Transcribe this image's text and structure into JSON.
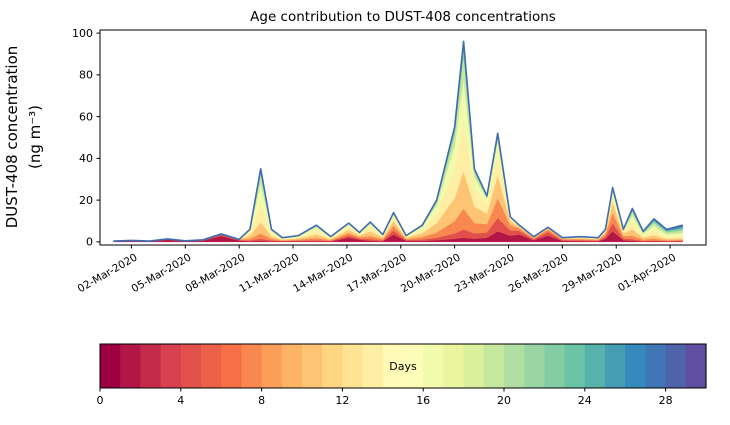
{
  "figure": {
    "title": "Age contribution to DUST-408 concentrations",
    "ylabel_line1": "DUST-408 concentration",
    "ylabel_line2": "(ng m⁻³)",
    "background": "#ffffff",
    "spine_color": "#000000",
    "total_line_color": "#3f6bb0"
  },
  "chart_data": {
    "type": "area",
    "stacked": true,
    "title": "Age contribution to DUST-408 concentrations",
    "ylabel": "DUST-408 concentration (ng m⁻³)",
    "x_unit": "days since 01-Mar-2020",
    "xlim": [
      -0.75,
      33
    ],
    "ylim": [
      -1.5,
      101.5
    ],
    "grid": false,
    "x": [
      0,
      1,
      2,
      3,
      4,
      5,
      6,
      7,
      7.6,
      8.2,
      8.8,
      9.4,
      10.3,
      11.3,
      12.1,
      13.1,
      13.7,
      14.3,
      15,
      15.6,
      16.3,
      17.2,
      18,
      19,
      19.5,
      20.1,
      20.8,
      21.4,
      22.1,
      22.6,
      23.4,
      24.2,
      25,
      26,
      27,
      27.4,
      27.8,
      28.4,
      28.9,
      29.5,
      30.1,
      30.8,
      31.7
    ],
    "series": [
      {
        "name": "age 0-2 days",
        "ages": [
          0,
          2
        ],
        "values": [
          0.2,
          0.4,
          0.2,
          1.0,
          0.3,
          0.6,
          2.8,
          0.6,
          0.3,
          0.5,
          0.3,
          0.2,
          0.3,
          0.3,
          0.2,
          2.0,
          1.0,
          0.5,
          0.3,
          3.5,
          0.5,
          0.5,
          0.8,
          1.5,
          2.0,
          1.5,
          2.0,
          5.0,
          3.0,
          3.5,
          0.8,
          3.0,
          0.5,
          0.4,
          0.3,
          1.5,
          5.0,
          0.8,
          0.5,
          0.2,
          0.3,
          0.2,
          0.2
        ]
      },
      {
        "name": "age 3-5 days",
        "ages": [
          3,
          5
        ],
        "values": [
          0.1,
          0.2,
          0.1,
          0.3,
          0.1,
          0.3,
          0.6,
          0.3,
          0.4,
          1.0,
          0.4,
          0.2,
          0.3,
          0.5,
          0.3,
          1.0,
          0.6,
          0.8,
          0.4,
          2.0,
          0.4,
          0.7,
          1.2,
          2.5,
          4.0,
          2.5,
          2.5,
          6.5,
          2.5,
          1.8,
          0.5,
          1.8,
          0.4,
          0.4,
          0.3,
          1.0,
          4.0,
          0.8,
          0.8,
          0.3,
          0.4,
          0.2,
          0.3
        ]
      },
      {
        "name": "age 6-8 days",
        "ages": [
          6,
          8
        ],
        "values": [
          0.1,
          0.1,
          0.1,
          0.1,
          0.1,
          0.1,
          0.3,
          0.2,
          0.8,
          2.5,
          0.8,
          0.3,
          0.5,
          1.0,
          0.4,
          1.2,
          0.7,
          1.5,
          0.6,
          2.2,
          0.5,
          1.2,
          2.5,
          6.0,
          10,
          5.0,
          4.0,
          9.5,
          2.5,
          1.2,
          0.5,
          1.2,
          0.4,
          0.5,
          0.4,
          1.2,
          5.0,
          1.2,
          1.7,
          0.6,
          0.9,
          0.4,
          0.5
        ]
      },
      {
        "name": "age 9-11 days",
        "ages": [
          9,
          11
        ],
        "values": [
          0,
          0,
          0,
          0,
          0,
          0,
          0.1,
          0.1,
          1.5,
          5.5,
          1.2,
          0.4,
          0.6,
          1.7,
          0.5,
          1.5,
          0.8,
          2.2,
          0.8,
          2.3,
          0.6,
          1.8,
          4.5,
          11,
          18,
          8.0,
          5.0,
          11,
          2.0,
          0.8,
          0.4,
          0.6,
          0.3,
          0.5,
          0.4,
          1.0,
          5.0,
          1.2,
          3.0,
          0.9,
          1.6,
          0.7,
          0.8
        ]
      },
      {
        "name": "age 12-14 days",
        "ages": [
          12,
          14
        ],
        "values": [
          0,
          0,
          0,
          0,
          0,
          0,
          0,
          0,
          1.6,
          9.0,
          1.5,
          0.4,
          0.6,
          2.0,
          0.5,
          1.6,
          0.7,
          2.2,
          0.7,
          2.0,
          0.5,
          1.8,
          5.0,
          14,
          24,
          8.5,
          4.5,
          10,
          1.2,
          0.4,
          0.2,
          0.3,
          0.2,
          0.4,
          0.3,
          0.7,
          3.5,
          1.0,
          3.5,
          1.0,
          2.2,
          1.0,
          1.1
        ]
      },
      {
        "name": "age 15-17 days",
        "ages": [
          15,
          17
        ],
        "values": [
          0,
          0,
          0,
          0,
          0,
          0,
          0,
          0,
          1.0,
          9.5,
          1.1,
          0.3,
          0.4,
          1.5,
          0.4,
          1.2,
          0.5,
          1.5,
          0.4,
          1.2,
          0.3,
          1.2,
          3.5,
          11,
          20,
          5.5,
          2.5,
          6.0,
          0.5,
          0.2,
          0.1,
          0.1,
          0.2,
          0.3,
          0.3,
          0.4,
          2.0,
          0.6,
          3.0,
          0.9,
          2.2,
          1.1,
          1.3
        ]
      },
      {
        "name": "age 18-20 days",
        "ages": [
          18,
          20
        ],
        "values": [
          0,
          0,
          0,
          0,
          0,
          0,
          0,
          0,
          0.4,
          4.5,
          0.5,
          0.2,
          0.3,
          0.7,
          0.2,
          0.5,
          0.2,
          0.8,
          0.3,
          0.8,
          0.2,
          0.8,
          1.5,
          5.5,
          11,
          2.5,
          1.0,
          2.5,
          0.3,
          0.1,
          0,
          0,
          0,
          0,
          0,
          0.2,
          1.0,
          0.4,
          2.0,
          0.6,
          1.6,
          1.0,
          1.3
        ]
      },
      {
        "name": "age 21-23 days",
        "ages": [
          21,
          23
        ],
        "values": [
          0,
          0,
          0,
          0,
          0,
          0,
          0,
          0,
          0,
          1.8,
          0.2,
          0,
          0,
          0.3,
          0,
          0,
          0,
          0,
          0,
          0,
          0,
          0,
          0.7,
          2.5,
          4.5,
          1.0,
          0.5,
          1.2,
          0,
          0,
          0,
          0,
          0,
          0,
          0,
          0,
          0.5,
          0,
          1.0,
          0.3,
          1.0,
          0.7,
          1.1
        ]
      },
      {
        "name": "age 24-26 days",
        "ages": [
          24,
          26
        ],
        "values": [
          0,
          0,
          0,
          0,
          0,
          0,
          0,
          0,
          0,
          0.7,
          0,
          0,
          0,
          0,
          0,
          0,
          0,
          0,
          0,
          0,
          0,
          0,
          0.3,
          1.0,
          2.0,
          0.5,
          0,
          0.3,
          0,
          0,
          0,
          0,
          0,
          0,
          0,
          0,
          0,
          0,
          0.5,
          0.2,
          0.5,
          0.4,
          0.8
        ]
      },
      {
        "name": "age 27-29 days",
        "ages": [
          27,
          29
        ],
        "values": [
          0,
          0,
          0,
          0,
          0,
          0,
          0,
          0,
          0,
          0,
          0,
          0,
          0,
          0,
          0,
          0,
          0,
          0,
          0,
          0,
          0,
          0,
          0,
          0,
          0.5,
          0,
          0,
          0,
          0,
          0,
          0,
          0,
          0,
          0,
          0,
          0,
          0,
          0,
          0,
          0,
          0.3,
          0.3,
          0.6
        ]
      }
    ],
    "xticks": {
      "days": [
        1,
        4,
        7,
        10,
        13,
        16,
        19,
        22,
        25,
        28,
        31
      ],
      "labels": [
        "02-Mar-2020",
        "05-Mar-2020",
        "08-Mar-2020",
        "11-Mar-2020",
        "14-Mar-2020",
        "17-Mar-2020",
        "20-Mar-2020",
        "23-Mar-2020",
        "26-Mar-2020",
        "29-Mar-2020",
        "01-Apr-2020"
      ]
    },
    "yticks": [
      0,
      20,
      40,
      60,
      80,
      100
    ],
    "colorbar": {
      "label": "Days",
      "min": 0,
      "max": 30,
      "cells": 30,
      "ticks": [
        0,
        4,
        8,
        12,
        16,
        20,
        24,
        28
      ],
      "colormap_stops": [
        "#9e0142",
        "#d53e4f",
        "#f46d43",
        "#fdae61",
        "#fee08b",
        "#ffffbf",
        "#e6f598",
        "#abdda4",
        "#66c2a5",
        "#3288bd",
        "#5e4fa2"
      ]
    }
  }
}
